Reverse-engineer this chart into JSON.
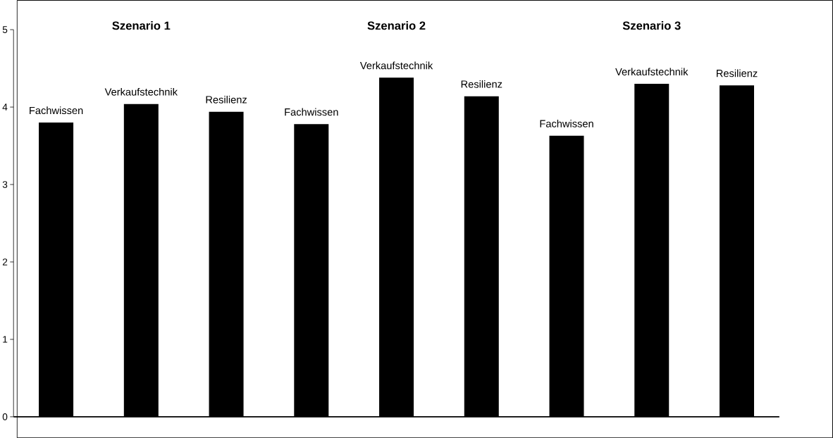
{
  "chart_data": {
    "type": "bar",
    "categories": [
      "Fachwissen",
      "Verkaufstechnik",
      "Resilienz",
      "Fachwissen",
      "Verkaufstechnik",
      "Resilienz",
      "Fachwissen",
      "Verkaufstechnik",
      "Resilienz"
    ],
    "values": [
      3.8,
      4.04,
      3.94,
      3.78,
      4.38,
      4.14,
      3.63,
      4.3,
      4.28
    ],
    "color": "#000000",
    "ylim": [
      0,
      5
    ],
    "yticks": [
      0,
      1,
      2,
      3,
      4,
      5
    ],
    "grid": false,
    "annotations": [
      "Szenario 1",
      "Szenario 2",
      "Szenario 3"
    ]
  }
}
